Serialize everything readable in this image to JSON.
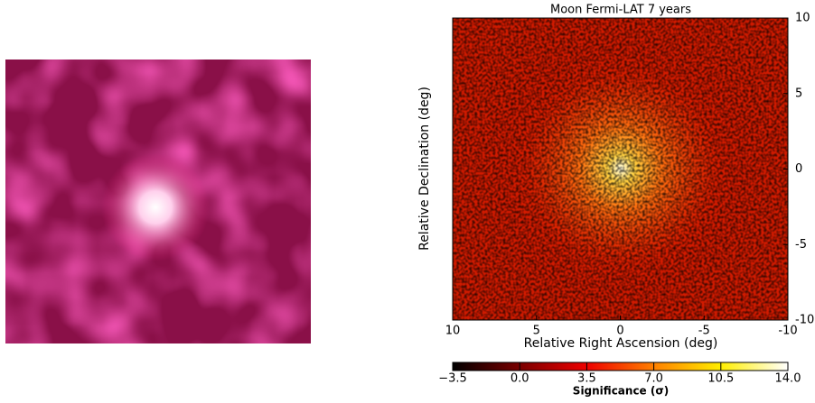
{
  "chart_data": {
    "type": "heatmap",
    "title": "Moon Fermi-LAT 7 years",
    "xlabel": "Relative Right Ascension (deg)",
    "ylabel": "Relative Declination (deg)",
    "xlim": [
      10,
      -10
    ],
    "ylim": [
      -10,
      10
    ],
    "xticks": [
      10,
      5,
      0,
      -5,
      -10
    ],
    "yticks": [
      10,
      5,
      0,
      -5,
      -10
    ],
    "colorbar": {
      "label": "Significance (σ)",
      "lim": [
        -3.5,
        14
      ],
      "ticks": [
        {
          "value": -3.5,
          "label": "−3.5"
        },
        {
          "value": 0,
          "label": "0.0"
        },
        3.5,
        {
          "value": 7,
          "label": "7.0"
        },
        10.5,
        {
          "value": 14,
          "label": "14.0"
        }
      ]
    }
  }
}
